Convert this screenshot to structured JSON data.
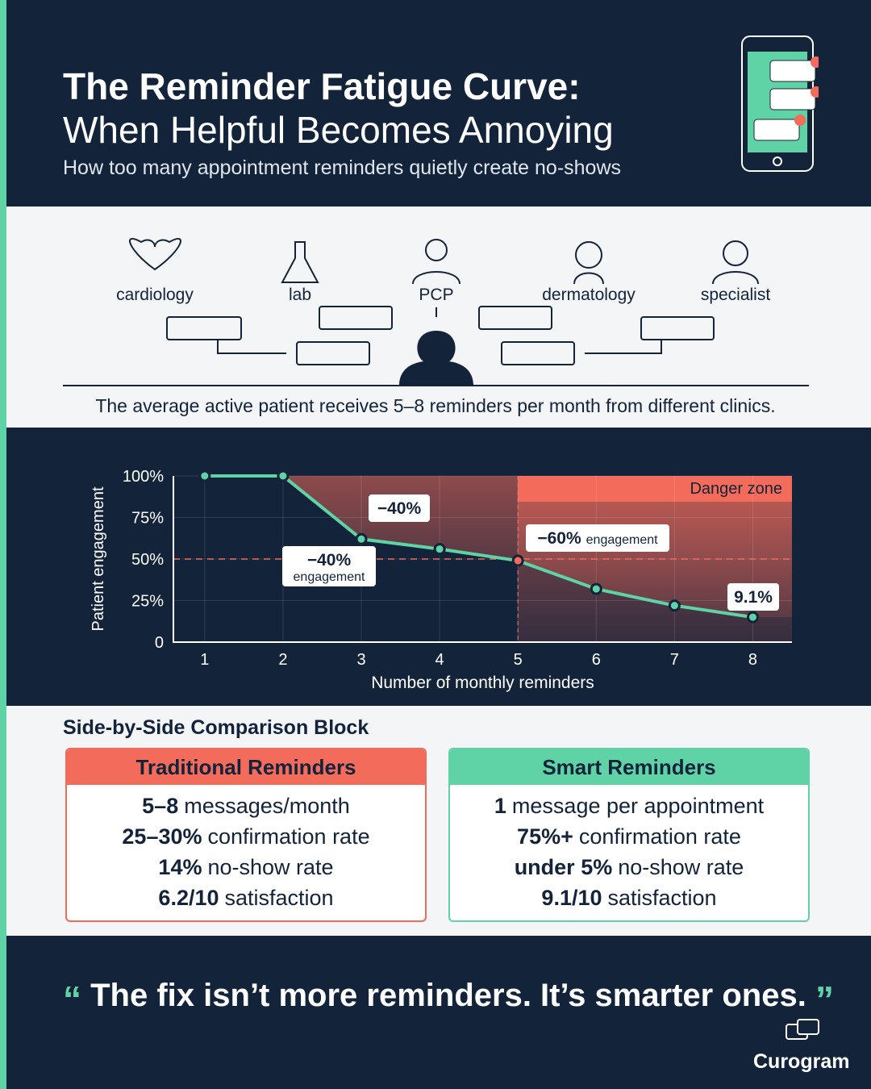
{
  "header": {
    "title": "The Reminder Fatigue Curve:",
    "subtitle": "When Helpful Becomes Annoying",
    "tagline": "How too many appointment reminders quietly create no-shows"
  },
  "clinics": [
    "cardiology",
    "lab",
    "PCP",
    "dermatology",
    "specialist"
  ],
  "stat": "The average active patient receives 5–8 reminders per month from different clinics.",
  "chart_data": {
    "type": "line",
    "x": [
      1,
      2,
      3,
      4,
      5,
      6,
      7,
      8
    ],
    "values": [
      100,
      100,
      62,
      56,
      49,
      32,
      22,
      15
    ],
    "color": "#5fd3a6",
    "xlim": [
      0.6,
      8.5
    ],
    "ylim": [
      0,
      100
    ],
    "xticks": [
      1,
      2,
      3,
      4,
      5,
      6,
      7,
      8
    ],
    "yticks": [
      0,
      {
        "value": 25,
        "label": "25%"
      },
      {
        "value": 50,
        "label": "50%"
      },
      {
        "value": 75,
        "label": "75%"
      },
      {
        "value": 100,
        "label": "100%"
      }
    ],
    "x_label": "Number of monthly reminders",
    "y_label": "Patient engagement",
    "grid": true,
    "reference_line": 50,
    "danger_zone": {
      "label": "Danger zone",
      "from": 5,
      "color": "#f26b5b"
    },
    "annotations": [
      {
        "bold": "−40%"
      },
      {
        "bold": "−40%",
        "text": "engagement"
      },
      {
        "bold": "−60%",
        "text": "engagement"
      },
      {
        "bold": "9.1%"
      }
    ]
  },
  "comparison": {
    "title": "Side-by-Side Comparison Block",
    "cards": [
      {
        "title": "Traditional Reminders",
        "rows": [
          {
            "bold": "5–8",
            "text": "messages/month"
          },
          {
            "bold": "25–30%",
            "text": "confirmation rate"
          },
          {
            "bold": "14%",
            "text": "no-show rate"
          },
          {
            "bold": "6.2/10",
            "text": "satisfaction"
          }
        ]
      },
      {
        "title": "Smart Reminders",
        "rows": [
          {
            "bold": "1",
            "text": "message per appointment"
          },
          {
            "bold": "75%+",
            "text": "confirmation rate"
          },
          {
            "bold": "under 5%",
            "text": "no-show rate"
          },
          {
            "bold": "9.1/10",
            "text": "satisfaction"
          }
        ]
      }
    ]
  },
  "quote": {
    "open": "“",
    "text": "The fix isn’t more reminders. It’s smarter ones.",
    "close": "”"
  },
  "brand": "Curogram"
}
